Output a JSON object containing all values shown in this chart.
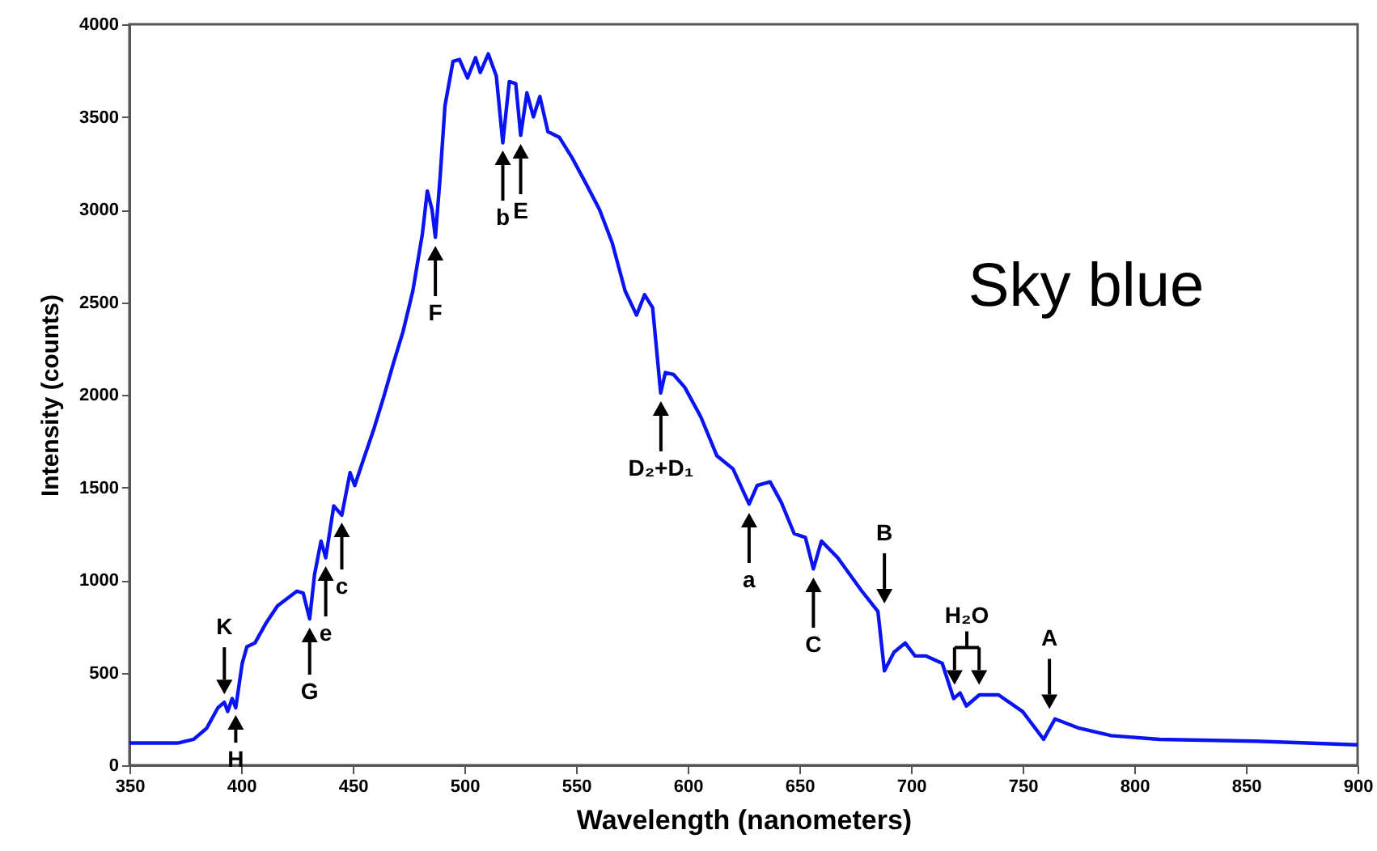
{
  "chart_data": {
    "type": "line",
    "xlabel": "Wavelength (nanometers)",
    "ylabel": "Intensity (counts)",
    "xlim": [
      350,
      900
    ],
    "ylim": [
      0,
      4000
    ],
    "xticks": [
      350,
      400,
      450,
      500,
      550,
      600,
      650,
      700,
      750,
      800,
      850,
      900
    ],
    "yticks": [
      0,
      500,
      1000,
      1500,
      2000,
      2500,
      3000,
      3500,
      4000
    ],
    "grid": false,
    "marker": "none",
    "line_style": "solid",
    "x": [
      350,
      371.6,
      378.8,
      384.6,
      389.6,
      392.5,
      394,
      396,
      397.6,
      400.5,
      402.6,
      406.2,
      411.3,
      416.3,
      420.6,
      425,
      427.8,
      430.7,
      432.9,
      435.8,
      437.9,
      441.5,
      445.1,
      448.8,
      450.9,
      454.5,
      459.6,
      463.9,
      468.2,
      472.5,
      476.9,
      481.2,
      483.4,
      485.5,
      487,
      489.1,
      491.3,
      494.9,
      497.8,
      501.4,
      505,
      507.1,
      510.7,
      514.3,
      517.2,
      520.1,
      523,
      525.2,
      528,
      530.9,
      533.8,
      537.4,
      542.5,
      548.2,
      554,
      560.5,
      566.2,
      572,
      577.1,
      580.7,
      584.3,
      587.9,
      590,
      593.6,
      598.7,
      605.9,
      613.1,
      620.3,
      627.5,
      631.1,
      636.9,
      641.9,
      647.7,
      652.7,
      656.3,
      659.9,
      667.2,
      678,
      685.2,
      688.1,
      692.4,
      697.4,
      701.8,
      706.8,
      714,
      719.1,
      722,
      724.8,
      730.6,
      739.2,
      750,
      759.4,
      764.5,
      775.3,
      789.7,
      811.3,
      854.6,
      900
    ],
    "series": [
      {
        "color": "#0a14f0",
        "values": [
          120,
          120,
          140,
          200,
          310,
          340,
          290,
          360,
          310,
          550,
          640,
          660,
          770,
          860,
          900,
          940,
          930,
          790,
          1030,
          1210,
          1120,
          1400,
          1350,
          1580,
          1510,
          1640,
          1820,
          1990,
          2170,
          2340,
          2560,
          2870,
          3100,
          3000,
          2850,
          3170,
          3560,
          3800,
          3810,
          3710,
          3820,
          3740,
          3840,
          3720,
          3360,
          3690,
          3680,
          3400,
          3630,
          3500,
          3610,
          3420,
          3390,
          3280,
          3150,
          3000,
          2820,
          2560,
          2430,
          2540,
          2470,
          2010,
          2120,
          2110,
          2040,
          1880,
          1670,
          1600,
          1410,
          1510,
          1530,
          1420,
          1250,
          1230,
          1060,
          1210,
          1120,
          940,
          830,
          510,
          610,
          660,
          590,
          590,
          550,
          360,
          390,
          320,
          380,
          380,
          290,
          140,
          250,
          200,
          160,
          140,
          130,
          110
        ]
      }
    ],
    "annotations": [
      {
        "text": "K",
        "x": 392.5,
        "y": 340
      },
      {
        "text": "H",
        "x": 397.6,
        "y": 314
      },
      {
        "text": "G",
        "x": 430.7,
        "y": 786
      },
      {
        "text": "e",
        "x": 437.9,
        "y": 1118
      },
      {
        "text": "c",
        "x": 445.1,
        "y": 1354
      },
      {
        "text": "F",
        "x": 487,
        "y": 2847
      },
      {
        "text": "b",
        "x": 517.2,
        "y": 3362
      },
      {
        "text": "E",
        "x": 525.2,
        "y": 3397
      },
      {
        "text": "D₂+D₁",
        "x": 588,
        "y": 2009
      },
      {
        "text": "a",
        "x": 627.5,
        "y": 1406
      },
      {
        "text": "C",
        "x": 656.3,
        "y": 1057
      },
      {
        "text": "B",
        "x": 688.1,
        "y": 830
      },
      {
        "text": "H₂O",
        "x": 725,
        "y": 400
      },
      {
        "text": "A",
        "x": 762,
        "y": 260
      },
      "Sky blue"
    ]
  }
}
